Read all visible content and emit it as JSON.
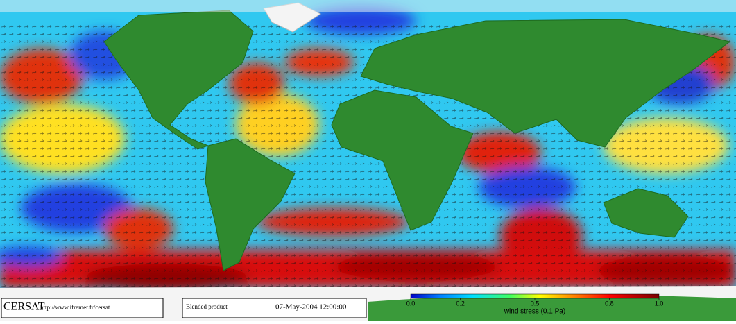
{
  "logo": "CERSAT",
  "url": "http://www.ifremer.fr/cersat",
  "product": "Blended product",
  "timestamp": "07-May-2004 12:00:00",
  "colorbar": {
    "label": "wind stress (0.1 Pa)",
    "lim": [
      0,
      1
    ],
    "ticks": [
      {
        "value": 0,
        "label": "0.0"
      },
      0.2,
      0.5,
      0.8,
      {
        "value": 1,
        "label": "1.0"
      }
    ]
  }
}
